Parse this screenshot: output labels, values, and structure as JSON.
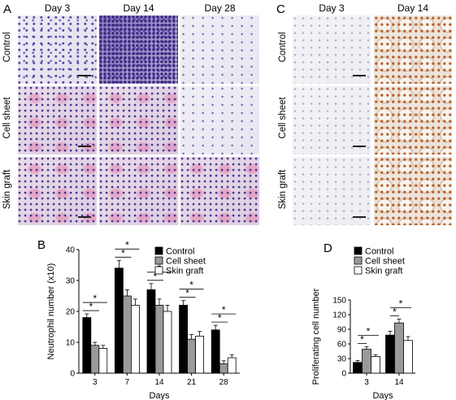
{
  "panel_a": {
    "letter": "A",
    "columns": [
      "Day 3",
      "Day 14",
      "Day 28"
    ],
    "rows": [
      "Control",
      "Cell sheet",
      "Skin graft"
    ]
  },
  "panel_c": {
    "letter": "C",
    "columns": [
      "Day 3",
      "Day 14"
    ],
    "rows": [
      "Control",
      "Cell sheet",
      "Skin graft"
    ]
  },
  "chart_data": [
    {
      "panel": "B",
      "type": "bar",
      "ylabel": "Neutrophil number (x10)",
      "xlabel": "Days",
      "categories": [
        "3",
        "7",
        "14",
        "21",
        "28"
      ],
      "ylim": [
        0,
        40
      ],
      "yticks": [
        0,
        10,
        20,
        30,
        40
      ],
      "legend_position": "top-right",
      "series": [
        {
          "name": "Control",
          "fill": "#000000",
          "values": [
            18,
            34,
            27,
            22,
            14
          ],
          "errors": [
            1.2,
            2.5,
            2.0,
            1.5,
            1.5
          ]
        },
        {
          "name": "Cell sheet",
          "fill": "#9a9a9a",
          "values": [
            9,
            25,
            22,
            11,
            3
          ],
          "errors": [
            1.0,
            2.0,
            2.0,
            1.5,
            1.0
          ]
        },
        {
          "name": "Skin graft",
          "fill": "#ffffff",
          "values": [
            8,
            22,
            20,
            12,
            5
          ],
          "errors": [
            1.0,
            2.0,
            2.0,
            1.5,
            1.0
          ]
        }
      ],
      "significance_label": "*"
    },
    {
      "panel": "D",
      "type": "bar",
      "ylabel": "Proliferating cell number",
      "xlabel": "Days",
      "categories": [
        "3",
        "14"
      ],
      "ylim": [
        0,
        150
      ],
      "yticks": [
        0,
        30,
        60,
        90,
        120,
        150
      ],
      "legend_position": "top-left",
      "series": [
        {
          "name": "Control",
          "fill": "#000000",
          "values": [
            22,
            78
          ],
          "errors": [
            4,
            8
          ]
        },
        {
          "name": "Cell sheet",
          "fill": "#9a9a9a",
          "values": [
            49,
            103
          ],
          "errors": [
            5,
            8
          ]
        },
        {
          "name": "Skin graft",
          "fill": "#ffffff",
          "values": [
            34,
            67
          ],
          "errors": [
            4,
            8
          ]
        }
      ],
      "significance_label": "*"
    }
  ]
}
